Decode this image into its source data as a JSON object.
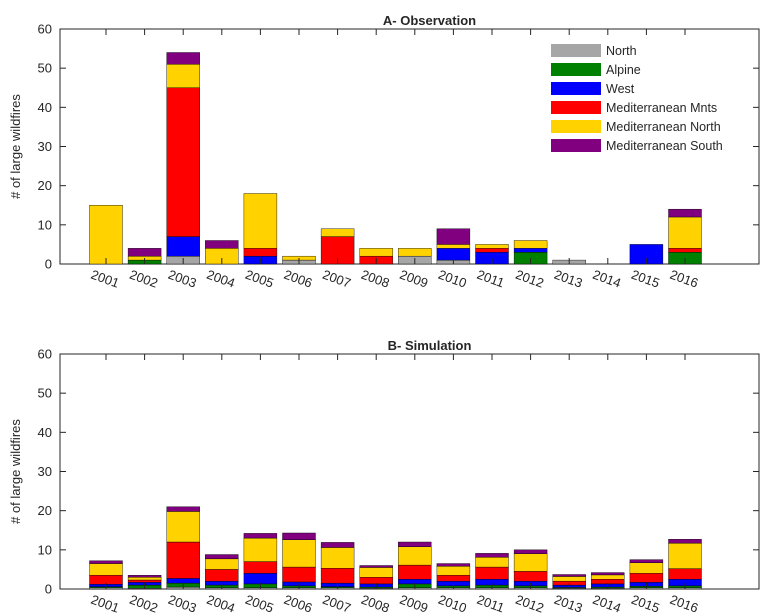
{
  "chart_data": [
    {
      "type": "bar",
      "stacked": true,
      "title": "A- Observation",
      "xlabel": "",
      "ylabel": "# of large wildfires",
      "ylim": [
        0,
        60
      ],
      "yticks": [
        0,
        10,
        20,
        30,
        40,
        50,
        60
      ],
      "categories": [
        "2001",
        "2002",
        "2003",
        "2004",
        "2005",
        "2006",
        "2007",
        "2008",
        "2009",
        "2010",
        "2011",
        "2012",
        "2013",
        "2014",
        "2015",
        "2016"
      ],
      "legend": "top-right",
      "series": [
        {
          "name": "North",
          "color": "#a6a6a6",
          "values": [
            0,
            0,
            2,
            0,
            0,
            1,
            0,
            0,
            2,
            1,
            0,
            0,
            1,
            0,
            0,
            0
          ]
        },
        {
          "name": "Alpine",
          "color": "#008000",
          "values": [
            0,
            1,
            0,
            0,
            0,
            0,
            0,
            0,
            0,
            0,
            0,
            3,
            0,
            0,
            0,
            3
          ]
        },
        {
          "name": "West",
          "color": "#0000ff",
          "values": [
            0,
            0,
            5,
            0,
            2,
            0,
            0,
            0,
            0,
            3,
            3,
            1,
            0,
            0,
            5,
            0
          ]
        },
        {
          "name": "Mediterranean Mnts",
          "color": "#ff0000",
          "values": [
            0,
            0,
            38,
            0,
            2,
            0,
            7,
            2,
            0,
            0,
            1,
            0,
            0,
            0,
            0,
            1
          ]
        },
        {
          "name": "Mediterranean North",
          "color": "#ffd200",
          "values": [
            15,
            1,
            6,
            4,
            14,
            1,
            2,
            2,
            2,
            1,
            1,
            2,
            0,
            0,
            0,
            8
          ]
        },
        {
          "name": "Mediterranean South",
          "color": "#800080",
          "values": [
            0,
            2,
            3,
            2,
            0,
            0,
            0,
            0,
            0,
            4,
            0,
            0,
            0,
            0,
            0,
            2
          ]
        }
      ]
    },
    {
      "type": "bar",
      "stacked": true,
      "title": "B- Simulation",
      "xlabel": "",
      "ylabel": "# of large wildfires",
      "ylim": [
        0,
        60
      ],
      "yticks": [
        0,
        10,
        20,
        30,
        40,
        50,
        60
      ],
      "categories": [
        "2001",
        "2002",
        "2003",
        "2004",
        "2005",
        "2006",
        "2007",
        "2008",
        "2009",
        "2010",
        "2011",
        "2012",
        "2013",
        "2014",
        "2015",
        "2016"
      ],
      "series": [
        {
          "name": "North",
          "color": "#a6a6a6",
          "values": [
            0.3,
            0.2,
            0.5,
            0.3,
            0.3,
            0.3,
            0.3,
            0.2,
            0.3,
            0.3,
            0.3,
            0.3,
            0.2,
            0.2,
            0.3,
            0.3
          ]
        },
        {
          "name": "Alpine",
          "color": "#008000",
          "values": [
            0.3,
            0.8,
            1.0,
            0.7,
            1.0,
            0.5,
            0.3,
            0.3,
            1.0,
            0.5,
            0.7,
            0.5,
            0.2,
            0.3,
            0.4,
            0.5
          ]
        },
        {
          "name": "West",
          "color": "#0000ff",
          "values": [
            0.6,
            0.7,
            1.2,
            1.0,
            2.7,
            1.0,
            0.9,
            0.8,
            1.2,
            1.2,
            1.5,
            1.2,
            0.6,
            0.8,
            1.0,
            1.7
          ]
        },
        {
          "name": "Mediterranean Mnts",
          "color": "#ff0000",
          "values": [
            2.3,
            0.6,
            9.3,
            3.0,
            3.0,
            3.8,
            3.8,
            1.7,
            3.6,
            1.5,
            3.1,
            2.5,
            1.0,
            1.2,
            2.3,
            2.7
          ]
        },
        {
          "name": "Mediterranean North",
          "color": "#ffd200",
          "values": [
            3.0,
            0.7,
            7.8,
            2.7,
            6.0,
            7.0,
            5.3,
            2.5,
            4.7,
            2.3,
            2.5,
            4.5,
            1.2,
            1.1,
            2.7,
            6.5
          ]
        },
        {
          "name": "Mediterranean South",
          "color": "#800080",
          "values": [
            0.7,
            0.5,
            1.2,
            1.1,
            1.2,
            1.7,
            1.3,
            0.5,
            1.2,
            0.7,
            1.0,
            1.0,
            0.5,
            0.6,
            0.8,
            1.0
          ]
        }
      ]
    }
  ]
}
